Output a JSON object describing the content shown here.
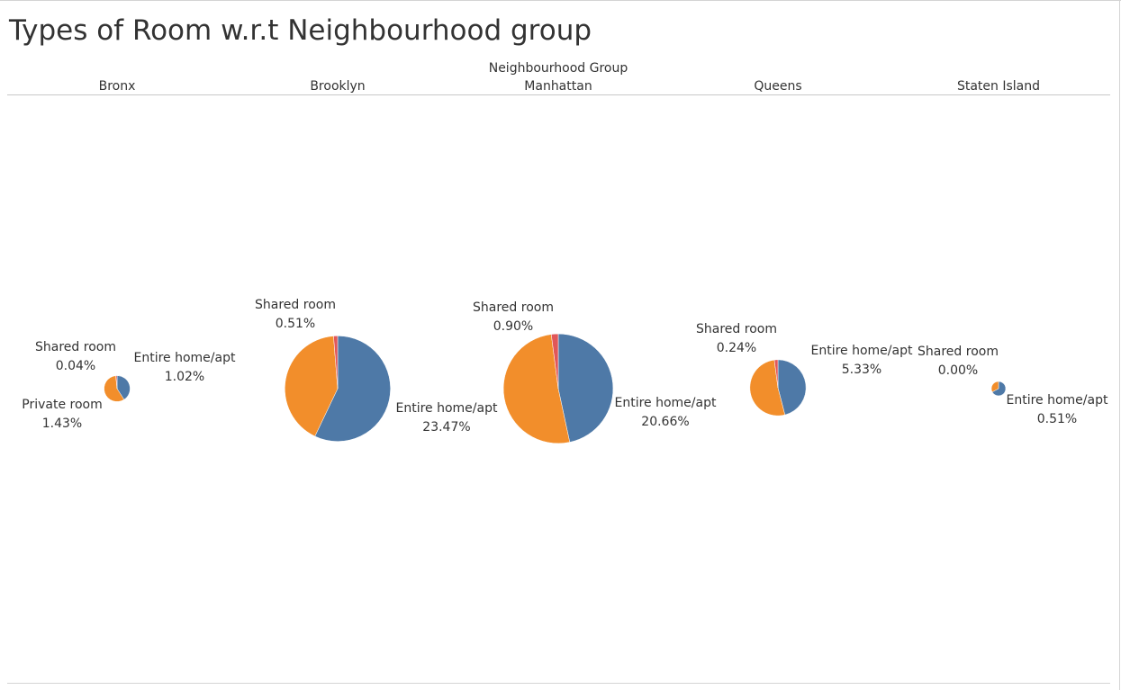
{
  "title": "Types of Room w.r.t Neighbourhood group",
  "chart_data": {
    "type": "pie",
    "column_header": "Neighbourhood Group",
    "colors": {
      "Entire home/apt": "#4e79a7",
      "Private room": "#f28e2b",
      "Shared room": "#e15759"
    },
    "groups": [
      {
        "name": "Bronx",
        "total_pct": 2.49,
        "slices": [
          {
            "category": "Entire home/apt",
            "value": 1.02
          },
          {
            "category": "Private room",
            "value": 1.43
          },
          {
            "category": "Shared room",
            "value": 0.04
          }
        ],
        "labels": [
          {
            "category": "Shared room",
            "value_text": "0.04%"
          },
          {
            "category": "Entire home/apt",
            "value_text": "1.02%"
          },
          {
            "category": "Private room",
            "value_text": "1.43%"
          }
        ]
      },
      {
        "name": "Brooklyn",
        "total_pct": 41.12,
        "slices": [
          {
            "category": "Entire home/apt",
            "value": 23.47
          },
          {
            "category": "Private room",
            "value": 17.14
          },
          {
            "category": "Shared room",
            "value": 0.51
          }
        ],
        "labels": [
          {
            "category": "Shared room",
            "value_text": "0.51%"
          },
          {
            "category": "Entire home/apt",
            "value_text": "23.47%"
          }
        ]
      },
      {
        "name": "Manhattan",
        "total_pct": 44.3,
        "slices": [
          {
            "category": "Entire home/apt",
            "value": 20.66
          },
          {
            "category": "Private room",
            "value": 22.74
          },
          {
            "category": "Shared room",
            "value": 0.9
          }
        ],
        "labels": [
          {
            "category": "Shared room",
            "value_text": "0.90%"
          },
          {
            "category": "Entire home/apt",
            "value_text": "20.66%"
          }
        ]
      },
      {
        "name": "Queens",
        "total_pct": 11.59,
        "slices": [
          {
            "category": "Entire home/apt",
            "value": 5.33
          },
          {
            "category": "Private room",
            "value": 6.02
          },
          {
            "category": "Shared room",
            "value": 0.24
          }
        ],
        "labels": [
          {
            "category": "Shared room",
            "value_text": "0.24%"
          },
          {
            "category": "Entire home/apt",
            "value_text": "5.33%"
          }
        ]
      },
      {
        "name": "Staten Island",
        "total_pct": 0.76,
        "slices": [
          {
            "category": "Entire home/apt",
            "value": 0.51
          },
          {
            "category": "Private room",
            "value": 0.25
          },
          {
            "category": "Shared room",
            "value": 0.0
          }
        ],
        "labels": [
          {
            "category": "Shared room",
            "value_text": "0.00%"
          },
          {
            "category": "Entire home/apt",
            "value_text": "0.51%"
          }
        ]
      }
    ]
  }
}
